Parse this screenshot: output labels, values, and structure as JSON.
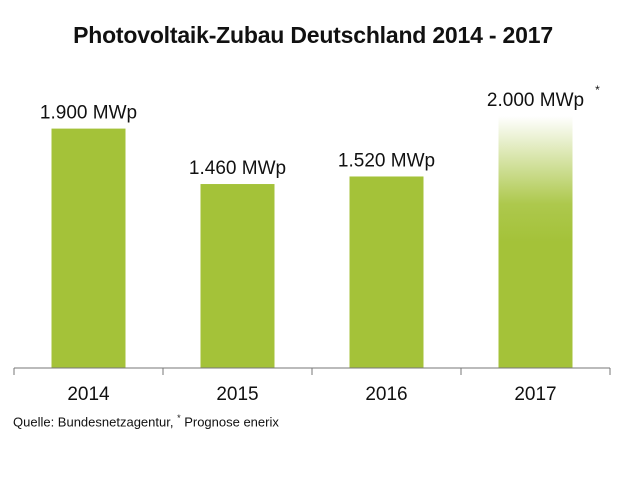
{
  "chart_data": {
    "type": "bar",
    "title": "Photovoltaik-Zubau Deutschland 2014 - 2017",
    "categories": [
      "2014",
      "2015",
      "2016",
      "2017"
    ],
    "values": [
      1900,
      1460,
      1520,
      2000
    ],
    "value_labels": [
      "1.900 MWp",
      "1.460 MWp",
      "1.520 MWp",
      "2.000 MWp"
    ],
    "forecast_marker": "*",
    "forecast_index": 3,
    "ylim": [
      0,
      2000
    ],
    "xlabel": "",
    "ylabel": "",
    "grid": false,
    "bar_color": "#a4c239",
    "source_prefix": "Quelle: Bundesnetzagentur, ",
    "source_marker": "*",
    "source_suffix": " Prognose enerix"
  }
}
